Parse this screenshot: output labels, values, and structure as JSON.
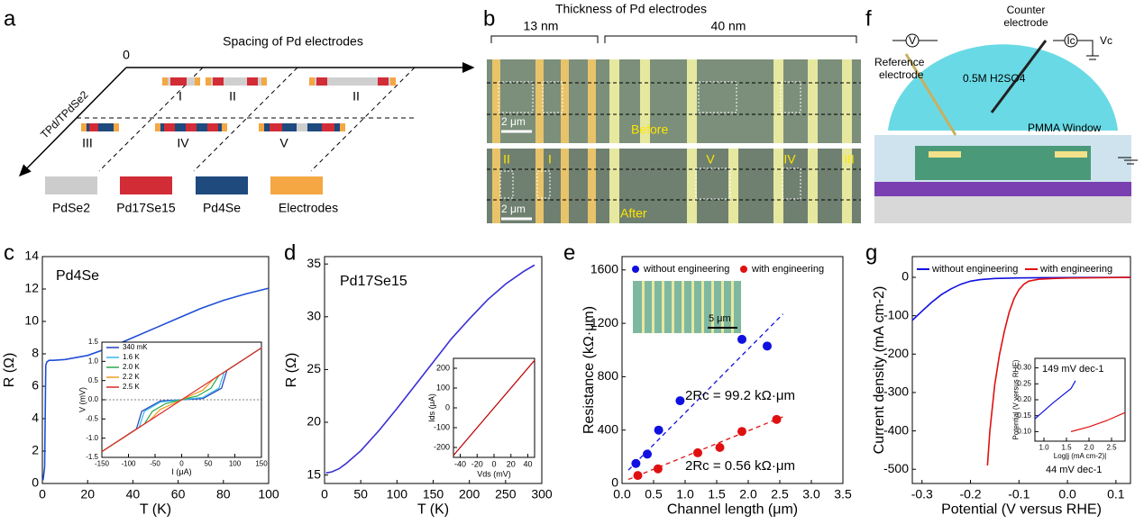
{
  "panel_labels": [
    "a",
    "b",
    "c",
    "d",
    "e",
    "f",
    "g"
  ],
  "panel_a": {
    "axis_x": "Spacing of Pd electrodes",
    "origin": "0",
    "axis_y": "TPd/TPdSe2",
    "devices": [
      "I",
      "II",
      "II",
      "III",
      "IV",
      "V"
    ],
    "legend": [
      "PdSe2",
      "Pd17Se15",
      "Pd4Se",
      "Electrodes"
    ]
  },
  "panel_b": {
    "title": "Thickness of Pd electrodes",
    "thin": "13 nm",
    "thick": "40 nm",
    "scale_top": "2 μm",
    "before": "Before",
    "scale_bottom": "2 μm",
    "after": "After",
    "regions": [
      "II",
      "I",
      "V",
      "IV",
      "III"
    ]
  },
  "panel_f": {
    "reference": "Reference",
    "reference2": "electrode",
    "counter": "Counter",
    "counter2": "electrode",
    "v": "V",
    "ic": "Ic",
    "vc": "Vc",
    "electrolyte": "0.5M H2SO4",
    "window": "PMMA Window"
  },
  "chart_data": [
    {
      "type": "line",
      "title": "Pd4Se",
      "xlabel": "T (K)",
      "ylabel": "R (Ω)",
      "xlim": [
        0,
        100
      ],
      "xticks": [
        0,
        20,
        40,
        60,
        80,
        100
      ],
      "ylim": [
        0,
        14
      ],
      "yticks": [
        0,
        2,
        4,
        6,
        8,
        10,
        12,
        14
      ],
      "series": [
        {
          "color": "#1f4fd6",
          "x": [
            0.3,
            1,
            1.5,
            2,
            3,
            5,
            10,
            20,
            30,
            40,
            50,
            60,
            70,
            80,
            90,
            100
          ],
          "values": [
            0.2,
            1,
            7.3,
            7.5,
            7.6,
            7.6,
            7.65,
            7.9,
            8.4,
            9.0,
            9.6,
            10.2,
            10.8,
            11.3,
            11.7,
            12.05
          ]
        }
      ]
    },
    {
      "type": "line",
      "xlabel": "I (μA)",
      "ylabel": "V (mV)",
      "xlim": [
        -150,
        150
      ],
      "xticks": [
        -150,
        -100,
        -50,
        0,
        50,
        100,
        150
      ],
      "ylim": [
        -1.5,
        1.5
      ],
      "yticks": [
        {
          "value": -1.5,
          "label": "-1.5"
        },
        {
          "value": -1,
          "label": "-1.0"
        },
        {
          "value": -0.5,
          "label": "-0.5"
        },
        {
          "value": 0,
          "label": "0.0"
        },
        {
          "value": 0.5,
          "label": "0.5"
        },
        {
          "value": 1,
          "label": "1.0"
        },
        {
          "value": 1.5,
          "label": "1.5"
        }
      ],
      "legend": "upper left",
      "series": [
        {
          "name": "340 mK",
          "color": "#1f3fbf",
          "x": [
            -150,
            -85,
            -75,
            -40,
            0,
            40,
            75,
            85,
            150
          ],
          "values": [
            -1.35,
            -0.76,
            -0.3,
            -0.03,
            0,
            0.03,
            0.3,
            0.76,
            1.35
          ]
        },
        {
          "name": "1.6 K",
          "color": "#35b8e8",
          "x": [
            -150,
            -80,
            -70,
            -40,
            0,
            40,
            70,
            80,
            150
          ],
          "values": [
            -1.35,
            -0.72,
            -0.3,
            -0.06,
            0,
            0.06,
            0.3,
            0.72,
            1.35
          ]
        },
        {
          "name": "2.0 K",
          "color": "#2aa84a",
          "x": [
            -150,
            -70,
            -55,
            -30,
            0,
            30,
            55,
            70,
            150
          ],
          "values": [
            -1.35,
            -0.63,
            -0.3,
            -0.1,
            0,
            0.1,
            0.3,
            0.63,
            1.35
          ]
        },
        {
          "name": "2.2 K",
          "color": "#f39c1f",
          "x": [
            -150,
            -60,
            -40,
            0,
            40,
            60,
            150
          ],
          "values": [
            -1.35,
            -0.54,
            -0.25,
            0,
            0.25,
            0.54,
            1.35
          ]
        },
        {
          "name": "2.5 K",
          "color": "#d92a2a",
          "x": [
            -150,
            150
          ],
          "values": [
            -1.35,
            1.35
          ]
        }
      ]
    },
    {
      "type": "line",
      "title": "Pd17Se15",
      "xlabel": "T (K)",
      "ylabel": "R (Ω)",
      "xlim": [
        0,
        300
      ],
      "xticks": [
        0,
        50,
        100,
        150,
        200,
        250,
        300
      ],
      "ylim": [
        14.2,
        35.7
      ],
      "yticks": [
        15,
        20,
        25,
        30,
        35
      ],
      "series": [
        {
          "color": "#3a2fd6",
          "x": [
            2,
            10,
            20,
            30,
            50,
            75,
            100,
            125,
            150,
            175,
            200,
            225,
            250,
            275,
            290
          ],
          "values": [
            15.2,
            15.3,
            15.6,
            16.1,
            17.3,
            19.2,
            21.3,
            23.5,
            25.7,
            27.9,
            29.8,
            31.6,
            33.1,
            34.3,
            34.9
          ]
        }
      ]
    },
    {
      "type": "line",
      "xlabel": "Vds (mV)",
      "ylabel": "Ids (μA)",
      "xlim": [
        -48,
        48
      ],
      "xticks": [
        -40,
        -20,
        0,
        20,
        40
      ],
      "ylim": [
        -250,
        250
      ],
      "yticks": [
        -200,
        -100,
        0,
        100,
        200
      ],
      "series": [
        {
          "color": "#c00000",
          "x": [
            -48,
            48
          ],
          "values": [
            -240,
            240
          ]
        }
      ]
    },
    {
      "type": "scatter",
      "xlabel": "Channel length  (μm)",
      "ylabel": "Resistance  (kΩ·μm)",
      "xlim": [
        0,
        3.5
      ],
      "xticks": [
        {
          "value": 0,
          "label": "0.0"
        },
        0.5,
        {
          "value": 1,
          "label": "1.0"
        },
        1.5,
        {
          "value": 2,
          "label": "2.0"
        },
        2.5,
        {
          "value": 3,
          "label": "3.0"
        },
        3.5
      ],
      "ylim": [
        0,
        1700
      ],
      "yticks": [
        0,
        400,
        800,
        1200,
        1600
      ],
      "legend": "top",
      "inset_scale": "5 μm",
      "series": [
        {
          "name": "without engineering",
          "color": "#1010e0",
          "x": [
            0.22,
            0.4,
            0.58,
            0.92,
            1.9,
            2.3
          ],
          "values": [
            150,
            220,
            400,
            620,
            1080,
            1030
          ]
        },
        {
          "name": "with engineering",
          "color": "#e01010",
          "x": [
            0.25,
            0.57,
            1.2,
            1.55,
            1.9,
            2.45
          ],
          "values": [
            60,
            110,
            230,
            270,
            390,
            480
          ]
        }
      ],
      "fits": [
        {
          "x": [
            0.1,
            2.55
          ],
          "values": [
            100,
            1270
          ]
        },
        {
          "x": [
            0.1,
            2.55
          ],
          "values": [
            30,
            500
          ]
        }
      ],
      "annotations": [
        "2Rc = 99.2 kΩ·μm",
        "2Rc = 0.56 kΩ·μm"
      ]
    },
    {
      "type": "line",
      "xlabel": "Potential (V versus RHE)",
      "ylabel": "Current density (mA cm-2)",
      "xlim": [
        -0.32,
        0.13
      ],
      "xticks": [
        -0.3,
        -0.2,
        -0.1,
        {
          "value": 0,
          "label": "0.0"
        },
        0.1
      ],
      "ylim": [
        -537,
        54
      ],
      "yticks": [
        0,
        -100,
        -200,
        -300,
        -400,
        -500
      ],
      "legend": "top",
      "series": [
        {
          "name": "without engineering",
          "color": "#1010e0",
          "x": [
            -0.32,
            -0.3,
            -0.28,
            -0.26,
            -0.24,
            -0.22,
            -0.2,
            -0.18,
            -0.15,
            -0.1,
            -0.05,
            0,
            0.13
          ],
          "values": [
            -112,
            -88,
            -65,
            -45,
            -30,
            -18,
            -10,
            -6,
            -3,
            -1.5,
            -1,
            -0.5,
            0
          ]
        },
        {
          "name": "with engineering",
          "color": "#e01010",
          "x": [
            -0.165,
            -0.16,
            -0.15,
            -0.14,
            -0.13,
            -0.12,
            -0.11,
            -0.1,
            -0.09,
            -0.08,
            -0.06,
            -0.03,
            0,
            0.13
          ],
          "values": [
            -490,
            -400,
            -280,
            -200,
            -140,
            -90,
            -55,
            -32,
            -18,
            -10,
            -5,
            -3,
            -2,
            0
          ]
        }
      ]
    },
    {
      "type": "line",
      "xlabel": "Log|j (mA cm-2)|",
      "ylabel": "Potential (V versus RHE)",
      "xlim": [
        0.8,
        2.8
      ],
      "xticks": [
        {
          "value": 1,
          "label": "1.0"
        },
        1.5,
        {
          "value": 2,
          "label": "2.0"
        },
        2.5
      ],
      "ylim": [
        0.07,
        0.33
      ],
      "yticks": [
        {
          "value": 0.1,
          "label": "0.10"
        },
        0.15,
        {
          "value": 0.2,
          "label": "0.20"
        },
        0.25,
        {
          "value": 0.3,
          "label": "0.30"
        }
      ],
      "series": [
        {
          "color": "#1010e0",
          "x": [
            0.8,
            1.2,
            1.6,
            1.7
          ],
          "values": [
            0.14,
            0.19,
            0.235,
            0.26
          ]
        },
        {
          "color": "#e01010",
          "x": [
            1.6,
            2.0,
            2.4,
            2.8
          ],
          "values": [
            0.1,
            0.115,
            0.135,
            0.16
          ]
        }
      ],
      "annotations": [
        "149 mV dec-1",
        "44 mV dec-1"
      ]
    }
  ]
}
